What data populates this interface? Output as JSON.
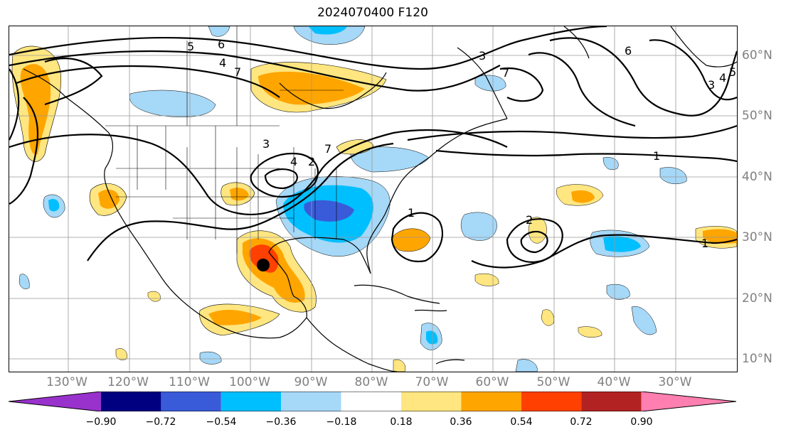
{
  "title": "2024070400 F120",
  "map": {
    "lon_labels": [
      "130°W",
      "120°W",
      "110°W",
      "100°W",
      "90°W",
      "80°W",
      "70°W",
      "60°W",
      "50°W",
      "40°W",
      "30°W"
    ],
    "lat_labels": [
      "60°N",
      "50°N",
      "40°N",
      "30°N",
      "20°N",
      "10°N"
    ],
    "storm_marker": {
      "lon": -97.5,
      "lat": 25.5
    },
    "contour_labels": [
      "5",
      "6",
      "4",
      "7",
      "3",
      "4",
      "2",
      "7",
      "3",
      "7",
      "6",
      "3",
      "4",
      "5",
      "1",
      "1",
      "2",
      "1"
    ]
  },
  "colorbar": {
    "colors": [
      "#9932cc",
      "#000080",
      "#3a5bd9",
      "#00bfff",
      "#a6d8f7",
      "#ffffff",
      "#ffe680",
      "#ffa500",
      "#ff4000",
      "#b22222",
      "#ff80b0"
    ],
    "ticks": [
      "−0.90",
      "−0.72",
      "−0.54",
      "−0.36",
      "−0.18",
      "0.18",
      "0.36",
      "0.54",
      "0.72",
      "0.90"
    ]
  }
}
